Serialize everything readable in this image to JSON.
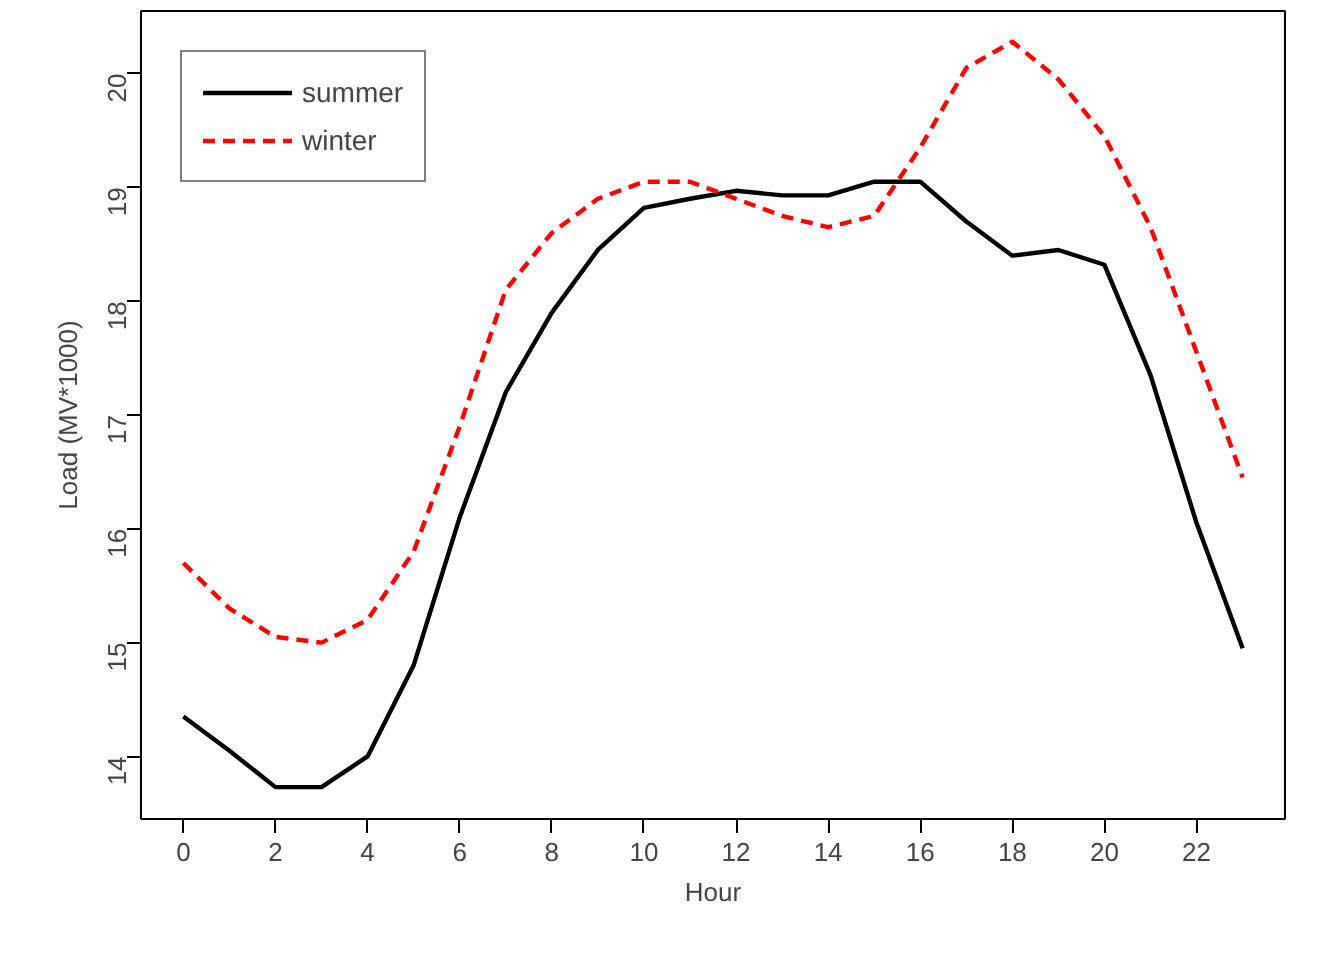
{
  "chart_data": {
    "type": "line",
    "xlabel": "Hour",
    "ylabel": "Load (MV*1000)",
    "x": [
      0,
      1,
      2,
      3,
      4,
      5,
      6,
      7,
      8,
      9,
      10,
      11,
      12,
      13,
      14,
      15,
      16,
      17,
      18,
      19,
      20,
      21,
      22,
      23
    ],
    "series": [
      {
        "name": "summer",
        "color": "#000000",
        "line_style": "solid",
        "values": [
          14.35,
          14.05,
          13.73,
          13.73,
          14.0,
          14.8,
          16.1,
          17.2,
          17.9,
          18.45,
          18.82,
          18.9,
          18.97,
          18.93,
          18.93,
          19.05,
          19.05,
          18.7,
          18.4,
          18.45,
          18.32,
          17.35,
          16.05,
          14.95
        ]
      },
      {
        "name": "winter",
        "color": "#ff0000",
        "line_style": "dashed",
        "values": [
          15.7,
          15.3,
          15.05,
          15.0,
          15.2,
          15.8,
          16.9,
          18.1,
          18.6,
          18.9,
          19.05,
          19.05,
          18.9,
          18.75,
          18.65,
          18.75,
          19.35,
          20.05,
          20.28,
          19.95,
          19.45,
          18.65,
          17.55,
          16.45
        ]
      }
    ],
    "xlim": [
      -0.92,
      23.92
    ],
    "ylim": [
      13.45,
      20.55
    ],
    "xticks": [
      0,
      2,
      4,
      6,
      8,
      10,
      12,
      14,
      16,
      18,
      20,
      22
    ],
    "yticks": [
      14,
      15,
      16,
      17,
      18,
      19,
      20
    ],
    "grid": false,
    "legend": "top left",
    "marker": "none"
  }
}
